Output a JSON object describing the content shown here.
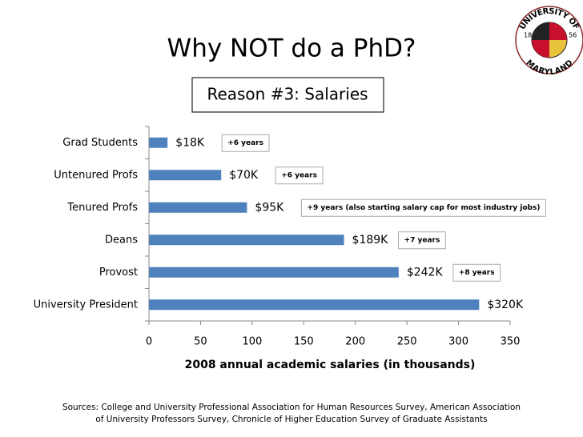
{
  "title": "Why NOT do a PhD?",
  "subtitle": "Reason #3: Salaries",
  "sources": [
    "Sources: College and University Professional Association for Human Resources  Survey, American Association",
    "of University Professors  Survey, Chronicle of Higher Education Survey of Graduate Assistants"
  ],
  "logo": {
    "top_text": "UNIVERSITY OF",
    "bottom_text": "MARYLAND",
    "left_year": "18",
    "right_year": "56"
  },
  "chart_data": {
    "type": "bar",
    "orientation": "horizontal",
    "categories": [
      "Grad Students",
      "Untenured Profs",
      "Tenured Profs",
      "Deans",
      "Provost",
      "University President"
    ],
    "values": [
      18,
      70,
      95,
      189,
      242,
      320
    ],
    "value_labels": [
      "$18K",
      "$70K",
      "$95K",
      "$189K",
      "$242K",
      "$320K"
    ],
    "annotations": [
      "+6 years",
      "+6 years",
      "+9 years (also starting salary cap for most industry jobs)",
      "+7 years",
      "+8 years"
    ],
    "color": "#4f81bd",
    "xlabel": "2008 annual academic salaries (in thousands)",
    "xlim": [
      0,
      350
    ],
    "xticks": [
      0,
      50,
      100,
      150,
      200,
      250,
      300,
      350
    ],
    "grid": false
  }
}
